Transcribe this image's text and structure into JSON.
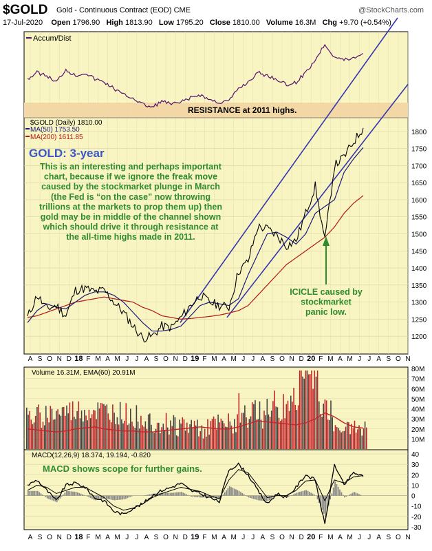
{
  "header": {
    "symbol": "$GOLD",
    "subtitle": "Gold - Continuous Contract (EOD)  CME",
    "brand": "@StockCharts.com",
    "date": "17-Jul-2020",
    "open_label": "Open",
    "open": "1796.90",
    "high_label": "High",
    "high": "1813.90",
    "low_label": "Low",
    "low": "1795.20",
    "close_label": "Close",
    "close": "1810.00",
    "volume_label": "Volume",
    "volume": "16.3M",
    "chg_label": "Chg",
    "chg": "+9.70 (+0.54%)"
  },
  "accum_panel": {
    "label": "Accum/Dist",
    "resistance_text": "RESISTANCE at   2011 highs."
  },
  "price_panel": {
    "legend_main": "$GOLD (Daily) 1810.00",
    "legend_ma50": "MA(50) 1753.50",
    "legend_ma200": "MA(200) 1611.85",
    "title_annotation": "GOLD: 3-year",
    "commentary": [
      "This is an interesting and perhaps important",
      "chart, because if we ignore the freak move",
      "caused by the stockmarket plunge in March",
      "(the Fed is “on the case” now throwing",
      "trillions at the markets to prop them up) then",
      "gold may be in middle of the channel shown",
      "which should drive it through resistance at",
      "the all-time highs made in 2011."
    ],
    "icicle_note": [
      "ICICLE caused by",
      "stockmarket",
      "panic low."
    ]
  },
  "volume_panel": {
    "legend": "Volume 16.31M, EMA(60) 20.91M"
  },
  "macd_panel": {
    "legend": "MACD(12,26,9) 18.374, 19.194, -0.820",
    "note": "MACD shows scope for further gains."
  },
  "x_axis_labels": [
    "A",
    "S",
    "O",
    "N",
    "D",
    "18",
    "F",
    "M",
    "A",
    "M",
    "J",
    "J",
    "A",
    "S",
    "O",
    "N",
    "D",
    "19",
    "F",
    "M",
    "A",
    "M",
    "J",
    "J",
    "A",
    "S",
    "O",
    "N",
    "D",
    "20",
    "F",
    "M",
    "A",
    "M",
    "J",
    "J",
    "A",
    "S",
    "O",
    "N"
  ],
  "colors": {
    "panel_bg": "#f9f5c2",
    "price": "#000000",
    "ma50": "#1a1a7a",
    "ma200": "#b01818",
    "accum": "#55116b",
    "channel": "#3535b0",
    "resistance": "#f3d7a4",
    "annotation": "#2e8b2e",
    "volume_up": "#444444",
    "volume_down": "#c0262c",
    "ema": "#c0262c",
    "histogram": "#8a8a8a"
  },
  "chart_data": [
    {
      "type": "line",
      "name": "price",
      "title": "$GOLD (Daily) 1810.00",
      "x": [
        "2017-08",
        "2017-09",
        "2017-10",
        "2017-11",
        "2017-12",
        "2018-01",
        "2018-02",
        "2018-03",
        "2018-04",
        "2018-05",
        "2018-06",
        "2018-07",
        "2018-08",
        "2018-09",
        "2018-10",
        "2018-11",
        "2018-12",
        "2019-01",
        "2019-02",
        "2019-03",
        "2019-04",
        "2019-05",
        "2019-06",
        "2019-07",
        "2019-08",
        "2019-09",
        "2019-10",
        "2019-11",
        "2019-12",
        "2020-01",
        "2020-02",
        "2020-03",
        "2020-04",
        "2020-05",
        "2020-06",
        "2020-07"
      ],
      "series": [
        {
          "name": "$GOLD (Daily) 1810.00",
          "values": [
            1255,
            1320,
            1280,
            1290,
            1260,
            1335,
            1340,
            1330,
            1335,
            1300,
            1270,
            1230,
            1195,
            1200,
            1230,
            1225,
            1255,
            1290,
            1320,
            1300,
            1290,
            1285,
            1390,
            1420,
            1520,
            1515,
            1495,
            1465,
            1480,
            1560,
            1640,
            1480,
            1700,
            1725,
            1770,
            1810
          ]
        },
        {
          "name": "MA(50) 1753.50",
          "values": [
            1240,
            1275,
            1295,
            1285,
            1280,
            1300,
            1320,
            1330,
            1330,
            1320,
            1300,
            1270,
            1240,
            1215,
            1215,
            1220,
            1230,
            1260,
            1290,
            1300,
            1295,
            1290,
            1310,
            1380,
            1440,
            1500,
            1505,
            1490,
            1470,
            1500,
            1560,
            1580,
            1600,
            1680,
            1720,
            1753
          ]
        },
        {
          "name": "MA(200) 1611.85",
          "values": [
            1255,
            1260,
            1270,
            1280,
            1290,
            1300,
            1305,
            1310,
            1315,
            1310,
            1305,
            1300,
            1285,
            1275,
            1260,
            1255,
            1250,
            1252,
            1255,
            1258,
            1262,
            1268,
            1275,
            1290,
            1320,
            1350,
            1380,
            1410,
            1430,
            1450,
            1470,
            1490,
            1520,
            1560,
            1590,
            1612
          ]
        }
      ],
      "ylim": [
        1160,
        1830
      ],
      "yticks": [
        1200,
        1250,
        1300,
        1350,
        1400,
        1450,
        1500,
        1550,
        1600,
        1650,
        1700,
        1750,
        1800
      ]
    },
    {
      "type": "bar",
      "name": "volume",
      "title": "Volume 16.31M, EMA(60) 20.91M",
      "yticks": [
        "10M",
        "20M",
        "30M",
        "40M",
        "50M",
        "60M",
        "70M",
        "80M"
      ],
      "ylim": [
        0,
        80
      ],
      "last_volume": 16.31,
      "last_ema": 20.91
    },
    {
      "type": "line",
      "name": "macd",
      "title": "MACD(12,26,9) 18.374, 19.194, -0.820",
      "yticks": [
        -30,
        -20,
        -10,
        0,
        10,
        20,
        30,
        40
      ],
      "ylim": [
        -32,
        42
      ],
      "series": [
        {
          "name": "MACD",
          "values": [
            10,
            15,
            5,
            -5,
            10,
            12,
            8,
            -2,
            -5,
            -15,
            -18,
            -12,
            -8,
            0,
            5,
            8,
            12,
            5,
            2,
            -2,
            -6,
            25,
            30,
            20,
            5,
            -8,
            2,
            -2,
            8,
            20,
            15,
            -28,
            30,
            10,
            22,
            18.374
          ]
        },
        {
          "name": "Signal",
          "values": [
            5,
            10,
            8,
            2,
            5,
            8,
            8,
            3,
            -2,
            -10,
            -14,
            -12,
            -8,
            -2,
            2,
            5,
            8,
            6,
            4,
            0,
            -3,
            15,
            25,
            22,
            10,
            -2,
            0,
            0,
            5,
            14,
            15,
            -5,
            15,
            12,
            18,
            19.194
          ]
        }
      ]
    }
  ]
}
